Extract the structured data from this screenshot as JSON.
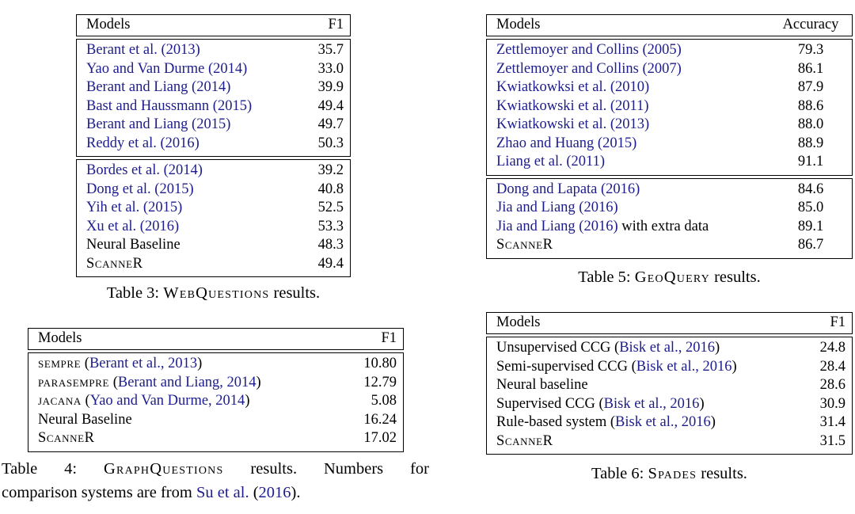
{
  "page": {
    "background_color": "#ffffff",
    "text_color": "#000000",
    "citation_color": "#1d1d8c"
  },
  "tables": [
    {
      "name": "webquestions",
      "header": {
        "model": "Models",
        "metric": "F1"
      },
      "groups": [
        {
          "rows": [
            {
              "model": [
                {
                  "t": "Berant et al. (2013)",
                  "c": "cite"
                }
              ],
              "value": "35.7"
            },
            {
              "model": [
                {
                  "t": "Yao and Van Durme (2014)",
                  "c": "cite"
                }
              ],
              "value": "33.0"
            },
            {
              "model": [
                {
                  "t": "Berant and Liang (2014)",
                  "c": "cite"
                }
              ],
              "value": "39.9"
            },
            {
              "model": [
                {
                  "t": "Bast and Haussmann (2015)",
                  "c": "cite"
                }
              ],
              "value": "49.4"
            },
            {
              "model": [
                {
                  "t": "Berant and Liang (2015)",
                  "c": "cite"
                }
              ],
              "value": "49.7"
            },
            {
              "model": [
                {
                  "t": "Reddy et al. (2016)",
                  "c": "cite"
                }
              ],
              "value": "50.3"
            }
          ]
        },
        {
          "rows": [
            {
              "model": [
                {
                  "t": "Bordes et al. (2014)",
                  "c": "cite"
                }
              ],
              "value": "39.2"
            },
            {
              "model": [
                {
                  "t": "Dong et al. (2015)",
                  "c": "cite"
                }
              ],
              "value": "40.8"
            },
            {
              "model": [
                {
                  "t": "Yih et al. (2015)",
                  "c": "cite"
                }
              ],
              "value": "52.5"
            },
            {
              "model": [
                {
                  "t": "Xu et al. (2016)",
                  "c": "cite"
                }
              ],
              "value": "53.3"
            },
            {
              "model": [
                {
                  "t": "Neural Baseline",
                  "c": "plain"
                }
              ],
              "value": "48.3"
            },
            {
              "model": [
                {
                  "t": "ScanneR",
                  "c": "sc"
                }
              ],
              "value": "49.4"
            }
          ]
        }
      ],
      "caption": {
        "lines": [
          [
            {
              "t": "Table 3: ",
              "c": "plain"
            },
            {
              "t": "WebQuestions",
              "c": "sc"
            },
            {
              "t": " results.",
              "c": "plain"
            }
          ]
        ]
      }
    },
    {
      "name": "graphquestions",
      "header": {
        "model": "Models",
        "metric": "F1"
      },
      "groups": [
        {
          "rows": [
            {
              "model": [
                {
                  "t": "SEMPRE",
                  "c": "sc-all"
                },
                {
                  "t": " (",
                  "c": "plain"
                },
                {
                  "t": "Berant et al., 2013",
                  "c": "cite"
                },
                {
                  "t": ")",
                  "c": "plain"
                }
              ],
              "value": "10.80"
            },
            {
              "model": [
                {
                  "t": "PARASEMPRE",
                  "c": "sc-all"
                },
                {
                  "t": " (",
                  "c": "plain"
                },
                {
                  "t": "Berant and Liang, 2014",
                  "c": "cite"
                },
                {
                  "t": ")",
                  "c": "plain"
                }
              ],
              "value": "12.79"
            },
            {
              "model": [
                {
                  "t": "JACANA",
                  "c": "sc-all"
                },
                {
                  "t": " (",
                  "c": "plain"
                },
                {
                  "t": "Yao and Van Durme, 2014",
                  "c": "cite"
                },
                {
                  "t": ")",
                  "c": "plain"
                }
              ],
              "value": "5.08"
            },
            {
              "model": [
                {
                  "t": "Neural Baseline",
                  "c": "plain"
                }
              ],
              "value": "16.24"
            },
            {
              "model": [
                {
                  "t": "ScanneR",
                  "c": "sc"
                }
              ],
              "value": "17.02"
            }
          ]
        }
      ],
      "caption": {
        "lines": [
          [
            {
              "t": "Table 4: ",
              "c": "plain"
            },
            {
              "t": "GraphQuestions",
              "c": "sc"
            },
            {
              "t": " results. Numbers for",
              "c": "plain"
            }
          ],
          [
            {
              "t": "comparison systems are from ",
              "c": "plain"
            },
            {
              "t": "Su et al.",
              "c": "cite"
            },
            {
              "t": " (",
              "c": "plain"
            },
            {
              "t": "2016",
              "c": "cite"
            },
            {
              "t": ").",
              "c": "plain"
            }
          ]
        ]
      }
    },
    {
      "name": "geoquery",
      "header": {
        "model": "Models",
        "metric": "Accuracy"
      },
      "groups": [
        {
          "rows": [
            {
              "model": [
                {
                  "t": "Zettlemoyer and Collins (2005)",
                  "c": "cite"
                }
              ],
              "value": "79.3"
            },
            {
              "model": [
                {
                  "t": "Zettlemoyer and Collins (2007)",
                  "c": "cite"
                }
              ],
              "value": "86.1"
            },
            {
              "model": [
                {
                  "t": "Kwiatkowksi et al. (2010)",
                  "c": "cite"
                }
              ],
              "value": "87.9"
            },
            {
              "model": [
                {
                  "t": "Kwiatkowski et al. (2011)",
                  "c": "cite"
                }
              ],
              "value": "88.6"
            },
            {
              "model": [
                {
                  "t": "Kwiatkowski et al. (2013)",
                  "c": "cite"
                }
              ],
              "value": "88.0"
            },
            {
              "model": [
                {
                  "t": "Zhao and Huang (2015)",
                  "c": "cite"
                }
              ],
              "value": "88.9"
            },
            {
              "model": [
                {
                  "t": "Liang et al. (2011)",
                  "c": "cite"
                }
              ],
              "value": "91.1"
            }
          ]
        },
        {
          "rows": [
            {
              "model": [
                {
                  "t": "Dong and Lapata (2016)",
                  "c": "cite"
                }
              ],
              "value": "84.6"
            },
            {
              "model": [
                {
                  "t": "Jia and Liang (2016)",
                  "c": "cite"
                }
              ],
              "value": "85.0"
            },
            {
              "model": [
                {
                  "t": "Jia and Liang (2016)",
                  "c": "cite"
                },
                {
                  "t": " with extra data",
                  "c": "plain"
                }
              ],
              "value": "89.1"
            },
            {
              "model": [
                {
                  "t": "ScanneR",
                  "c": "sc"
                }
              ],
              "value": "86.7"
            }
          ]
        }
      ],
      "caption": {
        "lines": [
          [
            {
              "t": "Table 5: ",
              "c": "plain"
            },
            {
              "t": "GeoQuery",
              "c": "sc"
            },
            {
              "t": " results.",
              "c": "plain"
            }
          ]
        ]
      }
    },
    {
      "name": "spades",
      "header": {
        "model": "Models",
        "metric": "F1"
      },
      "groups": [
        {
          "rows": [
            {
              "model": [
                {
                  "t": "Unsupervised CCG (",
                  "c": "plain"
                },
                {
                  "t": "Bisk et al., 2016",
                  "c": "cite"
                },
                {
                  "t": ")",
                  "c": "plain"
                }
              ],
              "value": "24.8"
            },
            {
              "model": [
                {
                  "t": "Semi-supervised CCG (",
                  "c": "plain"
                },
                {
                  "t": "Bisk et al., 2016",
                  "c": "cite"
                },
                {
                  "t": ")",
                  "c": "plain"
                }
              ],
              "value": "28.4"
            },
            {
              "model": [
                {
                  "t": "Neural baseline",
                  "c": "plain"
                }
              ],
              "value": "28.6"
            },
            {
              "model": [
                {
                  "t": "Supervised CCG (",
                  "c": "plain"
                },
                {
                  "t": "Bisk et al., 2016",
                  "c": "cite"
                },
                {
                  "t": ")",
                  "c": "plain"
                }
              ],
              "value": "30.9"
            },
            {
              "model": [
                {
                  "t": "Rule-based system (",
                  "c": "plain"
                },
                {
                  "t": "Bisk et al., 2016",
                  "c": "cite"
                },
                {
                  "t": ")",
                  "c": "plain"
                }
              ],
              "value": "31.4"
            },
            {
              "model": [
                {
                  "t": "ScanneR",
                  "c": "sc"
                }
              ],
              "value": "31.5"
            }
          ]
        }
      ],
      "caption": {
        "lines": [
          [
            {
              "t": "Table 6: ",
              "c": "plain"
            },
            {
              "t": "Spades",
              "c": "sc"
            },
            {
              "t": " results.",
              "c": "plain"
            }
          ]
        ]
      }
    }
  ]
}
